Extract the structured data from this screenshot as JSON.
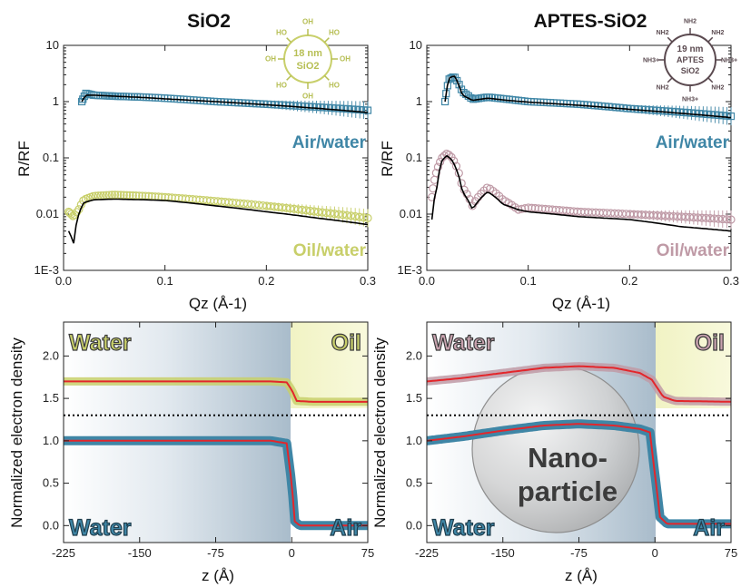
{
  "titles": {
    "left": "SiO2",
    "right": "APTES-SiO2"
  },
  "axes": {
    "reflectivity_ylabel": "R/RF",
    "qz_xlabel": "Qz (Å-1)",
    "density_ylabel": "Normalized electron density",
    "z_xlabel": "z (Å)"
  },
  "labels": {
    "air_water": "Air/water",
    "oil_water": "Oil/water",
    "water": "Water",
    "oil": "Oil",
    "air": "Air",
    "nanoparticle_line1": "Nano-",
    "nanoparticle_line2": "particle"
  },
  "insets": {
    "left": {
      "size": "18 nm",
      "core": "SiO2",
      "groups": [
        "OH",
        "HO",
        "OH",
        "HO",
        "OH",
        "HO",
        "OH",
        "HO"
      ]
    },
    "right": {
      "size": "19 nm",
      "core_top": "APTES",
      "core_bottom": "SiO2",
      "groups": [
        "NH2",
        "NH2",
        "NH3+",
        "NH2",
        "NH3+",
        "NH2",
        "NH3+",
        "NH2"
      ]
    }
  },
  "colors": {
    "air_water": "#3f86a6",
    "oil_water_left": "#c8cf6a",
    "oil_water_right": "#bf9aa6",
    "fit": "#000000",
    "profile_fit": "#e3262b",
    "water_bg": "#b4c4d2",
    "oil_bg": "#eef0b0",
    "dotted": "#000000"
  },
  "chart_data": [
    {
      "id": "reflectivity-sio2",
      "type": "scatter",
      "title": "SiO2",
      "xlabel": "Qz (Å-1)",
      "ylabel": "R/RF",
      "xlim": [
        0,
        0.3
      ],
      "ylim": [
        0.001,
        10
      ],
      "yscale": "log",
      "xticks": [
        "0.0",
        "0.1",
        "0.2",
        "0.3"
      ],
      "yticks": [
        "1E-3",
        "0.01",
        "0.1",
        "1",
        "10"
      ],
      "series": [
        {
          "name": "Air/water",
          "x": [
            0.018,
            0.022,
            0.03,
            0.05,
            0.08,
            0.1,
            0.15,
            0.2,
            0.25,
            0.3
          ],
          "y": [
            1.0,
            1.4,
            1.3,
            1.25,
            1.2,
            1.15,
            1.0,
            0.9,
            0.8,
            0.7
          ],
          "fit": [
            1.0,
            1.3,
            1.3,
            1.25,
            1.18,
            1.12,
            1.0,
            0.88,
            0.76,
            0.64
          ]
        },
        {
          "name": "Oil/water",
          "x": [
            0.005,
            0.01,
            0.015,
            0.02,
            0.03,
            0.05,
            0.08,
            0.1,
            0.15,
            0.2,
            0.25,
            0.3
          ],
          "y": [
            0.011,
            0.009,
            0.012,
            0.018,
            0.021,
            0.022,
            0.021,
            0.02,
            0.017,
            0.014,
            0.011,
            0.0085
          ],
          "fit": [
            0.005,
            0.003,
            0.01,
            0.016,
            0.018,
            0.0185,
            0.018,
            0.0175,
            0.014,
            0.011,
            0.0085,
            0.0065
          ]
        }
      ]
    },
    {
      "id": "reflectivity-aptes",
      "type": "scatter",
      "title": "APTES-SiO2",
      "xlabel": "Qz (Å-1)",
      "ylabel": "R/RF",
      "xlim": [
        0,
        0.3
      ],
      "ylim": [
        0.001,
        10
      ],
      "yscale": "log",
      "xticks": [
        "0.0",
        "0.1",
        "0.2",
        "0.3"
      ],
      "yticks": [
        "1E-3",
        "0.01",
        "0.1",
        "1",
        "10"
      ],
      "series": [
        {
          "name": "Air/water",
          "x": [
            0.018,
            0.022,
            0.027,
            0.035,
            0.045,
            0.06,
            0.08,
            0.1,
            0.15,
            0.2,
            0.25,
            0.3
          ],
          "y": [
            1.0,
            2.5,
            2.8,
            1.5,
            1.1,
            1.2,
            1.1,
            1.0,
            0.9,
            0.75,
            0.65,
            0.55
          ],
          "fit": [
            1.0,
            2.6,
            2.9,
            1.3,
            1.05,
            1.15,
            1.05,
            0.98,
            0.86,
            0.73,
            0.62,
            0.52
          ]
        },
        {
          "name": "Oil/water",
          "x": [
            0.005,
            0.01,
            0.015,
            0.02,
            0.025,
            0.035,
            0.045,
            0.06,
            0.075,
            0.09,
            0.1,
            0.15,
            0.2,
            0.25,
            0.3
          ],
          "y": [
            0.02,
            0.06,
            0.1,
            0.12,
            0.1,
            0.03,
            0.014,
            0.03,
            0.018,
            0.012,
            0.013,
            0.011,
            0.01,
            0.009,
            0.008
          ],
          "fit": [
            0.008,
            0.03,
            0.09,
            0.11,
            0.09,
            0.025,
            0.012,
            0.025,
            0.015,
            0.012,
            0.011,
            0.009,
            0.008,
            0.006,
            0.005
          ]
        }
      ]
    },
    {
      "id": "density-sio2",
      "type": "line",
      "xlabel": "z (Å)",
      "ylabel": "Normalized electron density",
      "xlim": [
        -225,
        75
      ],
      "ylim": [
        -0.2,
        2.4
      ],
      "xticks": [
        "-225",
        "-150",
        "-75",
        "0",
        "75"
      ],
      "yticks": [
        "0.0",
        "0.5",
        "1.0",
        "1.5",
        "2.0"
      ],
      "reference_line_y": 1.3,
      "series": [
        {
          "name": "Oil/water",
          "x": [
            -225,
            -150,
            -75,
            -20,
            -5,
            0,
            5,
            20,
            75
          ],
          "y": [
            1.7,
            1.7,
            1.7,
            1.7,
            1.69,
            1.6,
            1.47,
            1.46,
            1.46
          ]
        },
        {
          "name": "Air/water",
          "x": [
            -225,
            -150,
            -75,
            -20,
            -5,
            0,
            3,
            8,
            75
          ],
          "y": [
            1.0,
            1.0,
            1.0,
            1.0,
            0.97,
            0.5,
            0.05,
            0.0,
            0.0
          ]
        }
      ]
    },
    {
      "id": "density-aptes",
      "type": "line",
      "xlabel": "z (Å)",
      "ylabel": "Normalized electron density",
      "xlim": [
        -225,
        75
      ],
      "ylim": [
        -0.2,
        2.4
      ],
      "xticks": [
        "-225",
        "-150",
        "-75",
        "0",
        "75"
      ],
      "yticks": [
        "0.0",
        "0.5",
        "1.0",
        "1.5",
        "2.0"
      ],
      "reference_line_y": 1.3,
      "series": [
        {
          "name": "Oil/water",
          "x": [
            -225,
            -190,
            -150,
            -110,
            -75,
            -40,
            -15,
            -3,
            8,
            20,
            75
          ],
          "y": [
            1.7,
            1.74,
            1.8,
            1.86,
            1.88,
            1.86,
            1.8,
            1.72,
            1.52,
            1.47,
            1.46
          ]
        },
        {
          "name": "Air/water",
          "x": [
            -225,
            -190,
            -150,
            -110,
            -75,
            -40,
            -15,
            -5,
            0,
            5,
            12,
            75
          ],
          "y": [
            1.0,
            1.05,
            1.12,
            1.18,
            1.2,
            1.18,
            1.14,
            1.1,
            0.6,
            0.1,
            0.02,
            0.02
          ]
        }
      ]
    }
  ]
}
